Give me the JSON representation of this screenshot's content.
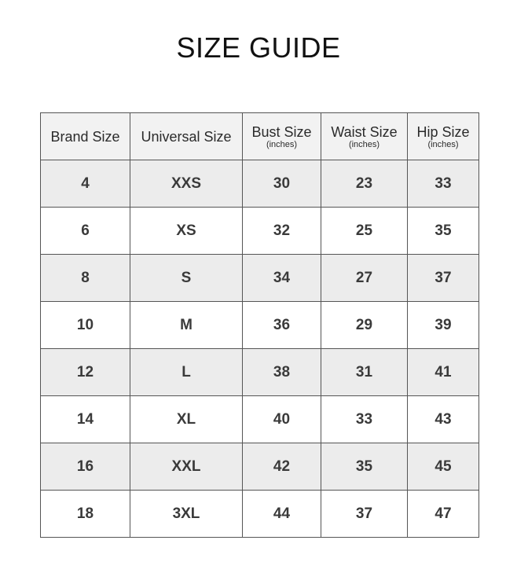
{
  "title": "SIZE GUIDE",
  "table": {
    "headers": [
      {
        "label": "Brand Size",
        "unit": ""
      },
      {
        "label": "Universal Size",
        "unit": ""
      },
      {
        "label": "Bust Size",
        "unit": "(inches)"
      },
      {
        "label": "Waist Size",
        "unit": "(inches)"
      },
      {
        "label": "Hip Size",
        "unit": "(inches)"
      }
    ],
    "rows": [
      [
        "4",
        "XXS",
        "30",
        "23",
        "33"
      ],
      [
        "6",
        "XS",
        "32",
        "25",
        "35"
      ],
      [
        "8",
        "S",
        "34",
        "27",
        "37"
      ],
      [
        "10",
        "M",
        "36",
        "29",
        "39"
      ],
      [
        "12",
        "L",
        "38",
        "31",
        "41"
      ],
      [
        "14",
        "XL",
        "40",
        "33",
        "43"
      ],
      [
        "16",
        "XXL",
        "42",
        "35",
        "45"
      ],
      [
        "18",
        "3XL",
        "44",
        "37",
        "47"
      ]
    ]
  },
  "colors": {
    "header_bg": "#f2f2f2",
    "shaded_row_bg": "#ececec",
    "border": "#555555"
  }
}
